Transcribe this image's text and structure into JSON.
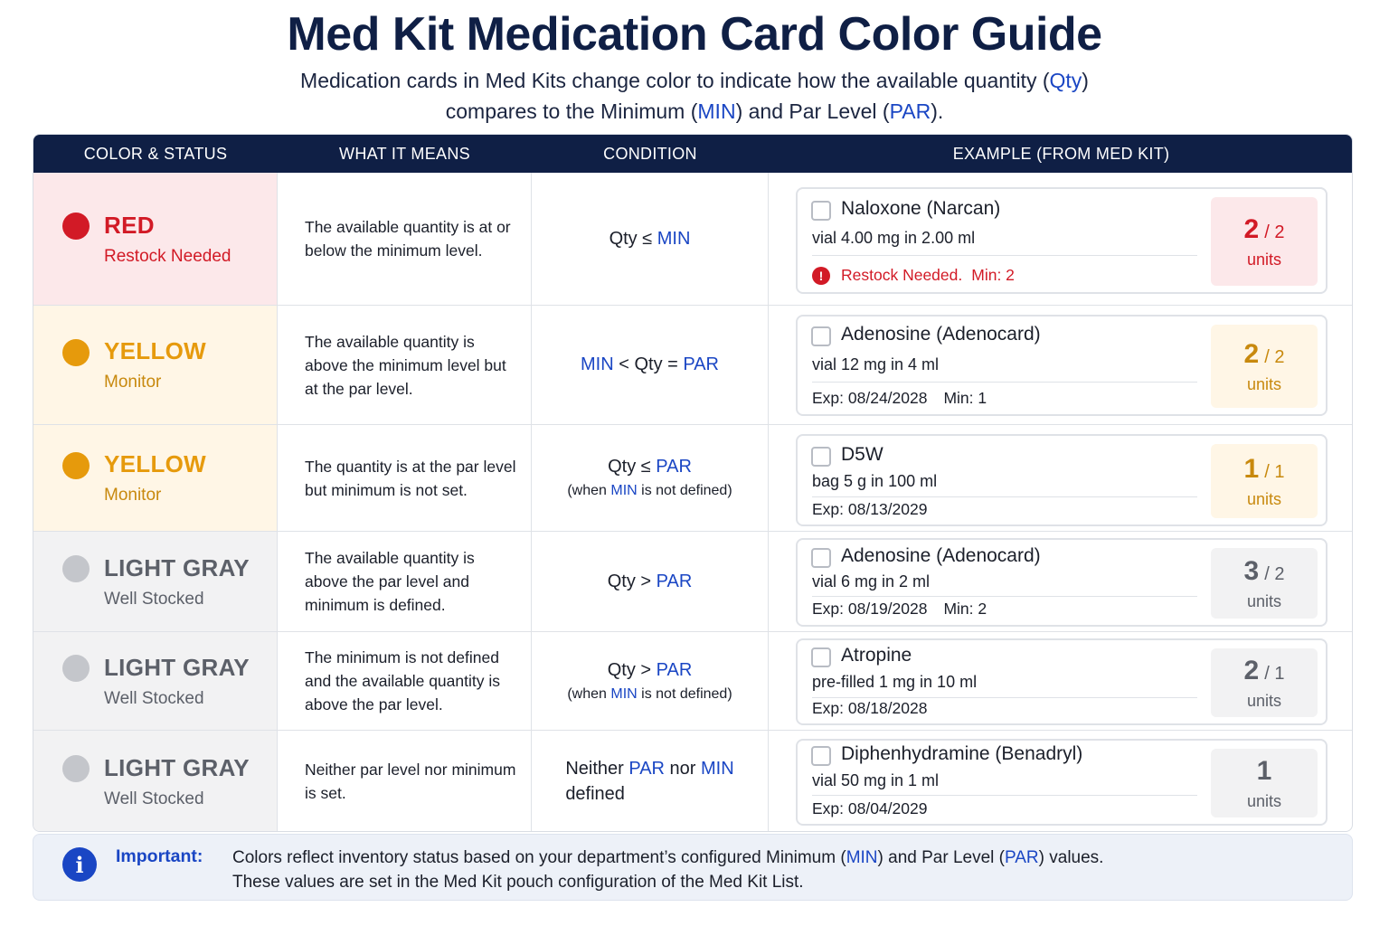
{
  "title": "Med Kit Medication Card Color Guide",
  "subtitle": {
    "line1_a": "Medication cards in Med Kits change color to indicate how the available quantity (",
    "line1_kw": "Qty",
    "line1_b": ")",
    "line2_a": "compares to the Minimum (",
    "line2_kw1": "MIN",
    "line2_b": ") and Par Level (",
    "line2_kw2": "PAR",
    "line2_c": ")."
  },
  "headers": [
    "COLOR & STATUS",
    "WHAT IT MEANS",
    "CONDITION",
    "EXAMPLE (FROM MED KIT)"
  ],
  "colors": {
    "navy": "#0f1f45",
    "accent_blue": "#1a46c4",
    "red": "#d21a26",
    "red_bg": "#fce8ea",
    "yellow": "#e69a0c",
    "yellow_text": "#c8890e",
    "yellow_bg": "#fff6e6",
    "gray": "#c4c6cb",
    "gray_text": "#5c6069",
    "gray_bg": "#f2f2f3"
  },
  "rows": [
    {
      "status": "RED",
      "status_sub": "Restock Needed",
      "means": "The available quantity is at or below the minimum level.",
      "cond": {
        "a": "Qty ≤ ",
        "k1": "MIN",
        "b": "",
        "k2": "",
        "c": "",
        "note_a": "",
        "note_k": "",
        "note_b": ""
      },
      "card": {
        "name": "Naloxone (Narcan)",
        "desc": "vial 4.00 mg in 2.00 ml",
        "exp": "",
        "min": "",
        "warn": "Restock Needed.",
        "warn_min": "Min: 2",
        "qty": "2",
        "par": "/ 2",
        "unit": "units"
      }
    },
    {
      "status": "YELLOW",
      "status_sub": "Monitor",
      "means": "The available quantity is above the minimum level but at the par level.",
      "cond": {
        "a": "",
        "k1": "MIN",
        "b": " < Qty = ",
        "k2": "PAR",
        "c": "",
        "note_a": "",
        "note_k": "",
        "note_b": ""
      },
      "card": {
        "name": "Adenosine (Adenocard)",
        "desc": "vial 12 mg in 4 ml",
        "exp": "Exp: 08/24/2028",
        "min": "Min: 1",
        "warn": "",
        "warn_min": "",
        "qty": "2",
        "par": "/ 2",
        "unit": "units"
      }
    },
    {
      "status": "YELLOW",
      "status_sub": "Monitor",
      "means": "The quantity is at the par level but minimum is not set.",
      "cond": {
        "a": "Qty ≤ ",
        "k1": "PAR",
        "b": "",
        "k2": "",
        "c": "",
        "note_a": "(when ",
        "note_k": "MIN",
        "note_b": " is not defined)"
      },
      "card": {
        "name": "D5W",
        "desc": "bag 5 g in 100 ml",
        "exp": "Exp: 08/13/2029",
        "min": "",
        "warn": "",
        "warn_min": "",
        "qty": "1",
        "par": "/ 1",
        "unit": "units"
      }
    },
    {
      "status": "LIGHT GRAY",
      "status_sub": "Well Stocked",
      "means": "The available quantity is above the par level and minimum is defined.",
      "cond": {
        "a": "Qty > ",
        "k1": "PAR",
        "b": "",
        "k2": "",
        "c": "",
        "note_a": "",
        "note_k": "",
        "note_b": ""
      },
      "card": {
        "name": "Adenosine (Adenocard)",
        "desc": "vial 6 mg in 2 ml",
        "exp": "Exp: 08/19/2028",
        "min": "Min: 2",
        "warn": "",
        "warn_min": "",
        "qty": "3",
        "par": "/ 2",
        "unit": "units"
      }
    },
    {
      "status": "LIGHT GRAY",
      "status_sub": "Well Stocked",
      "means": "The minimum is not defined and the available quantity is above the par level.",
      "cond": {
        "a": "Qty > ",
        "k1": "PAR",
        "b": "",
        "k2": "",
        "c": "",
        "note_a": "(when ",
        "note_k": "MIN",
        "note_b": " is not defined)"
      },
      "card": {
        "name": "Atropine",
        "desc": "pre-filled 1 mg in 10 ml",
        "exp": "Exp: 08/18/2028",
        "min": "",
        "warn": "",
        "warn_min": "",
        "qty": "2",
        "par": "/ 1",
        "unit": "units"
      }
    },
    {
      "status": "LIGHT GRAY",
      "status_sub": "Well Stocked",
      "means": "Neither par level nor minimum is set.",
      "cond": {
        "a": "Neither ",
        "k1": "PAR",
        "b": " nor ",
        "k2": "MIN",
        "c": "defined",
        "note_a": "",
        "note_k": "",
        "note_b": ""
      },
      "card": {
        "name": "Diphenhydramine (Benadryl)",
        "desc": "vial 50 mg in 1 ml",
        "exp": "Exp: 08/04/2029",
        "min": "",
        "warn": "",
        "warn_min": "",
        "qty": "1",
        "par": "",
        "unit": "units"
      }
    }
  ],
  "important": {
    "label": "Important:",
    "line1_a": "Colors reflect inventory status based on your department’s configured Minimum (",
    "line1_k1": "MIN",
    "line1_b": ") and Par Level (",
    "line1_k2": "PAR",
    "line1_c": ") values.",
    "line2": "These values are set in the Med Kit pouch configuration of the Med Kit List.",
    "icon": "info-icon"
  }
}
